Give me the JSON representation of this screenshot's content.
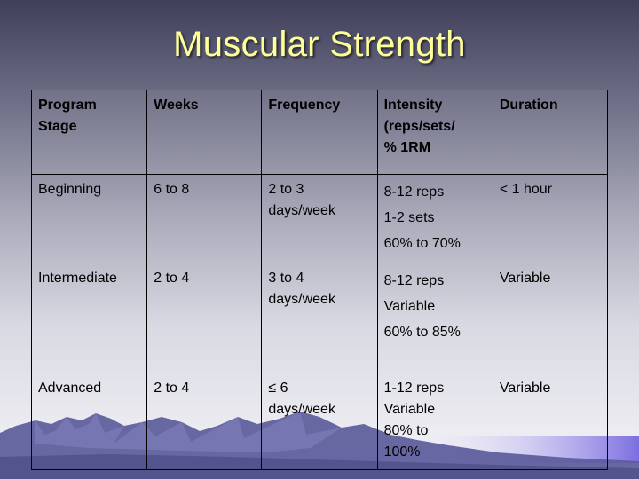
{
  "slide": {
    "title": "Muscular Strength"
  },
  "table": {
    "headers": [
      {
        "lines": [
          "Program",
          "Stage"
        ]
      },
      {
        "lines": [
          "Weeks"
        ]
      },
      {
        "lines": [
          "Frequency"
        ]
      },
      {
        "lines": [
          "Intensity",
          "(reps/sets/",
          "% 1RM"
        ]
      },
      {
        "lines": [
          "Duration"
        ]
      }
    ],
    "rows": [
      {
        "stage": "Beginning",
        "weeks": "6 to 8",
        "frequency": [
          "2 to 3",
          "days/week"
        ],
        "intensity": [
          "8-12 reps",
          "1-2 sets",
          "60% to 70%"
        ],
        "duration": "< 1 hour"
      },
      {
        "stage": "Intermediate",
        "weeks": "2 to 4",
        "frequency": [
          "3 to 4",
          "days/week"
        ],
        "intensity": [
          "8-12 reps",
          "Variable",
          "60% to 85%"
        ],
        "duration": "Variable"
      },
      {
        "stage": "Advanced",
        "weeks": "2 to 4",
        "frequency": [
          "≤ 6",
          "days/week"
        ],
        "intensity": [
          "1-12 reps",
          "Variable",
          "80% to",
          "100%"
        ],
        "duration": "Variable"
      }
    ]
  },
  "colors": {
    "title": "#ffff99",
    "mountains": "#5a5a9c",
    "horizon": "#9a8fe0"
  }
}
